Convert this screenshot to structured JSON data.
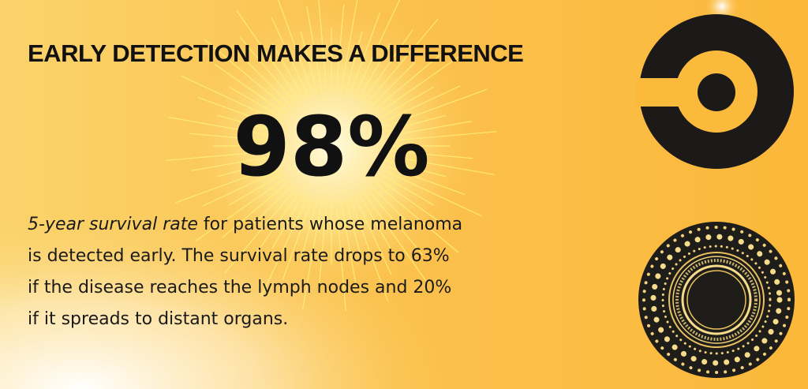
{
  "header": {
    "title": "EARLY DETECTION MAKES A DIFFERENCE"
  },
  "stat": {
    "value_label": "98%"
  },
  "body": {
    "emphasis": "5-year survival rate",
    "lines": [
      "for patients whose melanoma",
      "is detected early. The survival rate drops to 63%",
      "if the disease reaches the lymph nodes and 20%",
      "if it spreads to distant organs."
    ]
  }
}
